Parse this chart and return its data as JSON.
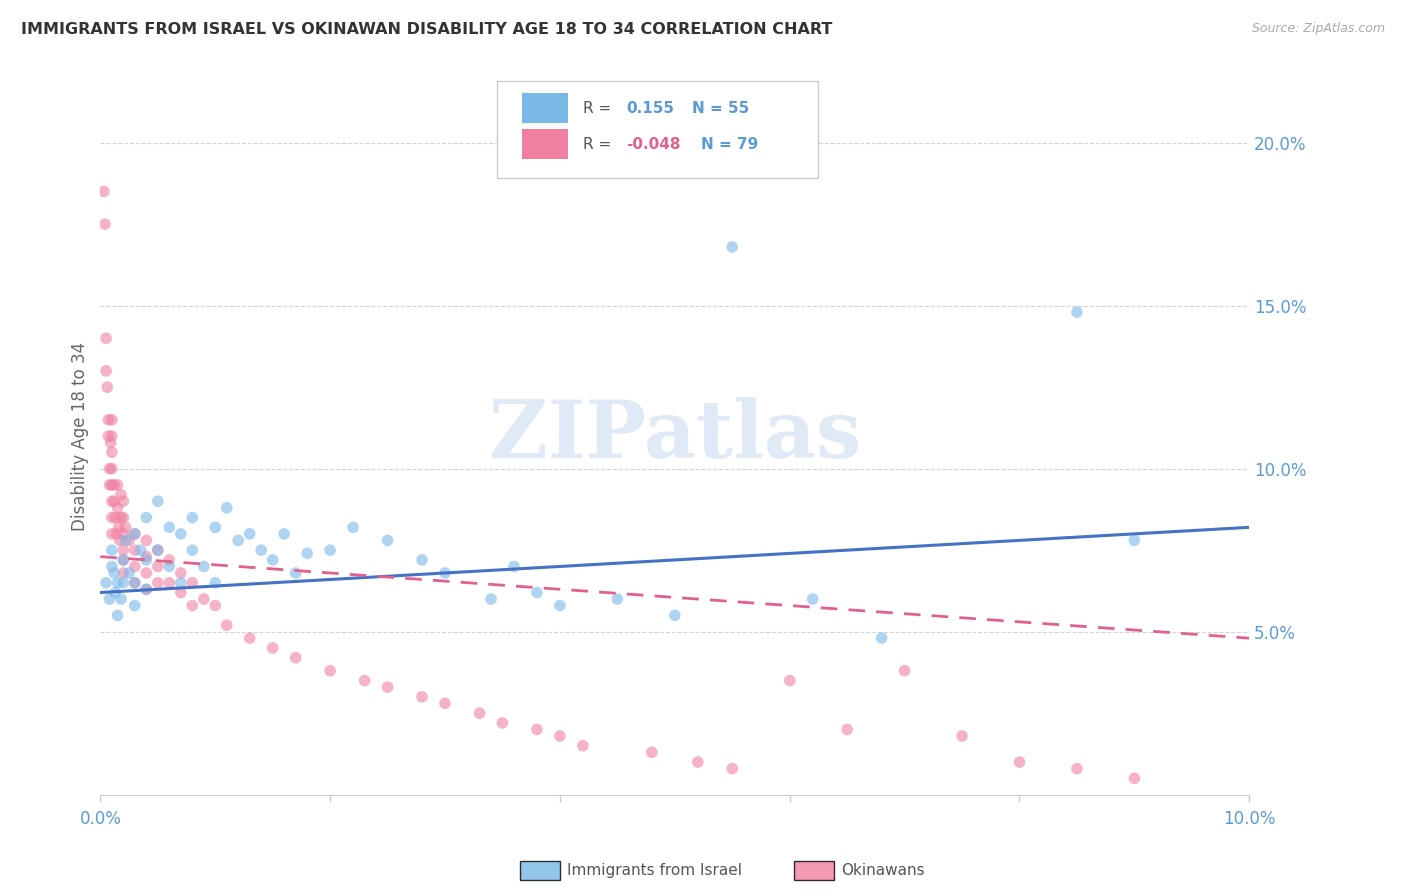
{
  "title": "IMMIGRANTS FROM ISRAEL VS OKINAWAN DISABILITY AGE 18 TO 34 CORRELATION CHART",
  "source": "Source: ZipAtlas.com",
  "ylabel": "Disability Age 18 to 34",
  "xlim": [
    0.0,
    0.1
  ],
  "ylim": [
    0.0,
    0.22
  ],
  "xtick_vals": [
    0.0,
    0.02,
    0.04,
    0.06,
    0.08,
    0.1
  ],
  "xtick_labels": [
    "0.0%",
    "",
    "",
    "",
    "",
    "10.0%"
  ],
  "ytick_vals": [
    0.05,
    0.1,
    0.15,
    0.2
  ],
  "ytick_labels": [
    "5.0%",
    "10.0%",
    "15.0%",
    "20.0%"
  ],
  "watermark": "ZIPatlas",
  "blue_color": "#7ab8e8",
  "pink_color": "#f080a0",
  "blue_line_color": "#4472c4",
  "pink_line_color": "#e06090",
  "grid_color": "#c8c8c8",
  "axis_label_color": "#5b9bd5",
  "blue_R": "0.155",
  "blue_N": "55",
  "pink_R": "-0.048",
  "pink_N": "79",
  "blue_scatter_x": [
    0.0005,
    0.0008,
    0.001,
    0.001,
    0.0012,
    0.0013,
    0.0015,
    0.0015,
    0.0018,
    0.002,
    0.002,
    0.0022,
    0.0025,
    0.003,
    0.003,
    0.003,
    0.0035,
    0.004,
    0.004,
    0.004,
    0.005,
    0.005,
    0.006,
    0.006,
    0.007,
    0.007,
    0.008,
    0.008,
    0.009,
    0.01,
    0.01,
    0.011,
    0.012,
    0.013,
    0.014,
    0.015,
    0.016,
    0.017,
    0.018,
    0.02,
    0.022,
    0.025,
    0.028,
    0.03,
    0.034,
    0.036,
    0.038,
    0.04,
    0.045,
    0.05,
    0.055,
    0.062,
    0.068,
    0.085,
    0.09
  ],
  "blue_scatter_y": [
    0.065,
    0.06,
    0.07,
    0.075,
    0.068,
    0.062,
    0.065,
    0.055,
    0.06,
    0.072,
    0.065,
    0.078,
    0.068,
    0.08,
    0.065,
    0.058,
    0.075,
    0.085,
    0.072,
    0.063,
    0.09,
    0.075,
    0.082,
    0.07,
    0.08,
    0.065,
    0.085,
    0.075,
    0.07,
    0.082,
    0.065,
    0.088,
    0.078,
    0.08,
    0.075,
    0.072,
    0.08,
    0.068,
    0.074,
    0.075,
    0.082,
    0.078,
    0.072,
    0.068,
    0.06,
    0.07,
    0.062,
    0.058,
    0.06,
    0.055,
    0.168,
    0.06,
    0.048,
    0.148,
    0.078
  ],
  "pink_scatter_x": [
    0.0003,
    0.0004,
    0.0005,
    0.0005,
    0.0006,
    0.0007,
    0.0007,
    0.0008,
    0.0008,
    0.0009,
    0.001,
    0.001,
    0.001,
    0.001,
    0.001,
    0.001,
    0.001,
    0.001,
    0.0012,
    0.0012,
    0.0013,
    0.0014,
    0.0015,
    0.0015,
    0.0016,
    0.0017,
    0.0018,
    0.0018,
    0.002,
    0.002,
    0.002,
    0.002,
    0.002,
    0.002,
    0.0022,
    0.0025,
    0.003,
    0.003,
    0.003,
    0.003,
    0.004,
    0.004,
    0.004,
    0.004,
    0.005,
    0.005,
    0.005,
    0.006,
    0.006,
    0.007,
    0.007,
    0.008,
    0.008,
    0.009,
    0.01,
    0.011,
    0.013,
    0.015,
    0.017,
    0.02,
    0.023,
    0.025,
    0.028,
    0.03,
    0.033,
    0.035,
    0.038,
    0.04,
    0.042,
    0.048,
    0.052,
    0.055,
    0.06,
    0.065,
    0.07,
    0.075,
    0.08,
    0.085,
    0.09
  ],
  "pink_scatter_y": [
    0.185,
    0.175,
    0.14,
    0.13,
    0.125,
    0.115,
    0.11,
    0.1,
    0.095,
    0.108,
    0.115,
    0.11,
    0.105,
    0.1,
    0.095,
    0.09,
    0.085,
    0.08,
    0.095,
    0.09,
    0.085,
    0.08,
    0.095,
    0.088,
    0.082,
    0.078,
    0.092,
    0.085,
    0.09,
    0.085,
    0.08,
    0.075,
    0.072,
    0.068,
    0.082,
    0.078,
    0.08,
    0.075,
    0.07,
    0.065,
    0.078,
    0.073,
    0.068,
    0.063,
    0.075,
    0.07,
    0.065,
    0.072,
    0.065,
    0.068,
    0.062,
    0.065,
    0.058,
    0.06,
    0.058,
    0.052,
    0.048,
    0.045,
    0.042,
    0.038,
    0.035,
    0.033,
    0.03,
    0.028,
    0.025,
    0.022,
    0.02,
    0.018,
    0.015,
    0.013,
    0.01,
    0.008,
    0.035,
    0.02,
    0.038,
    0.018,
    0.01,
    0.008,
    0.005
  ],
  "blue_trend_x": [
    0.0,
    0.1
  ],
  "blue_trend_y": [
    0.062,
    0.082
  ],
  "pink_trend_x": [
    0.0,
    0.1
  ],
  "pink_trend_y": [
    0.073,
    0.048
  ],
  "marker_size": 70,
  "marker_alpha": 0.6
}
